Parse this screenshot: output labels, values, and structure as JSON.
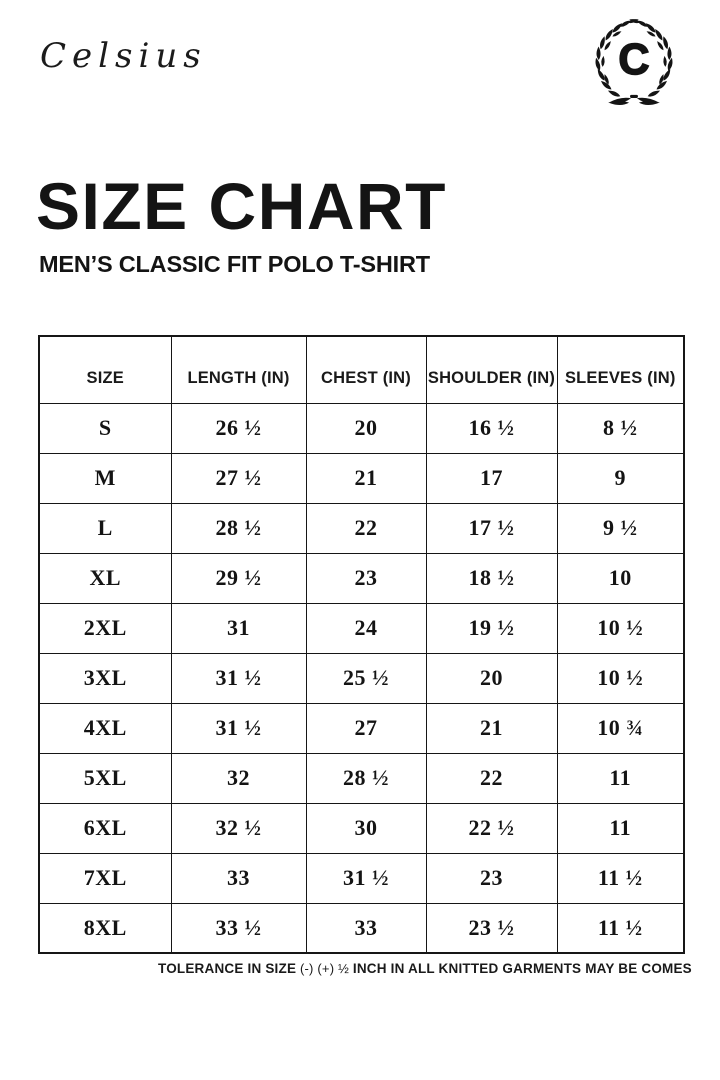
{
  "brand": {
    "logo_text": "Celsius",
    "monogram_letter": "C"
  },
  "header": {
    "title": "SIZE CHART",
    "subtitle": "MEN’S CLASSIC FIT POLO T-SHIRT"
  },
  "table": {
    "columns": [
      "SIZE",
      "LENGTH (IN)",
      "CHEST (IN)",
      "SHOULDER (IN)",
      "SLEEVES (IN)"
    ],
    "rows": [
      [
        "S",
        "26 ½",
        "20",
        "16 ½",
        "8 ½"
      ],
      [
        "M",
        "27 ½",
        "21",
        "17",
        "9"
      ],
      [
        "L",
        "28 ½",
        "22",
        "17 ½",
        "9 ½"
      ],
      [
        "XL",
        "29 ½",
        "23",
        "18 ½",
        "10"
      ],
      [
        "2XL",
        "31",
        "24",
        "19 ½",
        "10 ½"
      ],
      [
        "3XL",
        "31 ½",
        "25 ½",
        "20",
        "10 ½"
      ],
      [
        "4XL",
        "31 ½",
        "27",
        "21",
        "10 ¾"
      ],
      [
        "5XL",
        "32",
        "28 ½",
        "22",
        "11"
      ],
      [
        "6XL",
        "32 ½",
        "30",
        "22 ½",
        "11"
      ],
      [
        "7XL",
        "33",
        "31 ½",
        "23",
        "11 ½"
      ],
      [
        "8XL",
        "33 ½",
        "33",
        "23 ½",
        "11 ½"
      ]
    ]
  },
  "footer": {
    "note_prefix": "TOLERANCE IN SIZE",
    "note_tolerance": " (-) (+) ½ ",
    "note_suffix": "INCH IN ALL KNITTED GARMENTS MAY BE COMES"
  },
  "colors": {
    "background": "#ffffff",
    "ink": "#161616"
  }
}
